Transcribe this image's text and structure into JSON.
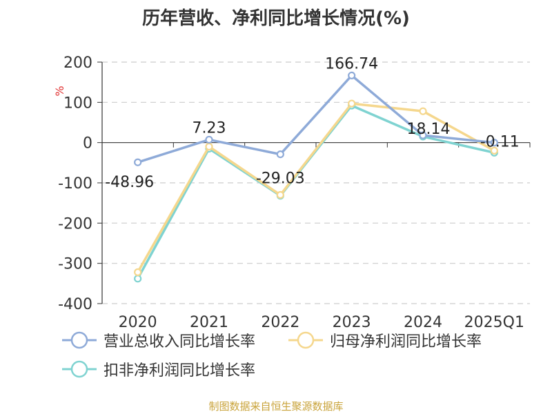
{
  "title": "历年营收、净利同比增长情况(%)",
  "source": "制图数据来自恒生聚源数据库",
  "colors": {
    "revenue": "#8eaad8",
    "net_profit": "#f5d78d",
    "deducted_profit": "#7fd3d1",
    "grid": "#cccccc",
    "axis": "#333333",
    "unit": "#e03030"
  },
  "chart_data": {
    "type": "line",
    "ylabel": "%",
    "ylim": [
      -400,
      200
    ],
    "yticks": [
      200,
      100,
      0,
      -100,
      -200,
      -300,
      -400
    ],
    "categories": [
      "2020",
      "2021",
      "2022",
      "2023",
      "2024",
      "2025Q1"
    ],
    "grid": true,
    "legend_position": "bottom",
    "series": [
      {
        "name": "营业总收入同比增长率",
        "color_key": "revenue",
        "values": [
          -48.96,
          7.23,
          -29.03,
          166.74,
          18.14,
          -0.11
        ],
        "labels": [
          "-48.96",
          "7.23",
          "-29.03",
          "166.74",
          "18.14",
          "-0.11"
        ]
      },
      {
        "name": "归母净利润同比增长率",
        "color_key": "net_profit",
        "values": [
          -322,
          -10,
          -130,
          97,
          78,
          -20
        ]
      },
      {
        "name": "扣非净利润同比增长率",
        "color_key": "deducted_profit",
        "values": [
          -338,
          -15,
          -132,
          92,
          15,
          -25
        ]
      }
    ]
  }
}
